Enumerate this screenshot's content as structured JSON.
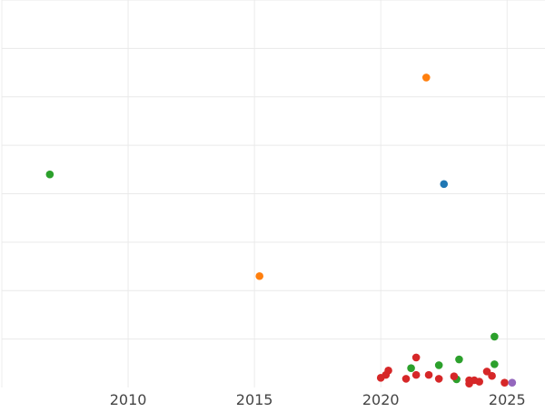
{
  "chart_data": {
    "type": "scatter",
    "x_tick_labels": [
      "2010",
      "2015",
      "2020",
      "2025"
    ],
    "x_ticks": [
      2010,
      2015,
      2020,
      2025
    ],
    "xlim": [
      2005.0,
      2026.5
    ],
    "ylim": [
      0,
      8
    ],
    "y_gridlines": [
      1,
      2,
      3,
      4,
      5,
      6,
      7,
      8
    ],
    "grid": true,
    "legend": "none",
    "colors": {
      "blue": "#1f77b4",
      "orange": "#ff7f0e",
      "green": "#2ca02c",
      "red": "#d62728",
      "purple": "#9467bd"
    },
    "series": [
      {
        "color": "#1f77b4",
        "points": [
          {
            "x": 2022.5,
            "y": 4.2
          }
        ]
      },
      {
        "color": "#ff7f0e",
        "points": [
          {
            "x": 2021.8,
            "y": 6.4
          },
          {
            "x": 2015.2,
            "y": 2.3
          }
        ]
      },
      {
        "color": "#2ca02c",
        "points": [
          {
            "x": 2006.9,
            "y": 4.4
          },
          {
            "x": 2024.5,
            "y": 1.05
          },
          {
            "x": 2023.1,
            "y": 0.58
          },
          {
            "x": 2024.5,
            "y": 0.48
          },
          {
            "x": 2022.3,
            "y": 0.46
          },
          {
            "x": 2021.2,
            "y": 0.4
          },
          {
            "x": 2023.0,
            "y": 0.17
          }
        ]
      },
      {
        "color": "#d62728",
        "points": [
          {
            "x": 2021.4,
            "y": 0.62
          },
          {
            "x": 2020.3,
            "y": 0.35
          },
          {
            "x": 2020.2,
            "y": 0.26
          },
          {
            "x": 2020.0,
            "y": 0.2
          },
          {
            "x": 2021.0,
            "y": 0.18
          },
          {
            "x": 2021.4,
            "y": 0.26
          },
          {
            "x": 2021.9,
            "y": 0.26
          },
          {
            "x": 2022.3,
            "y": 0.18
          },
          {
            "x": 2022.9,
            "y": 0.23
          },
          {
            "x": 2023.5,
            "y": 0.15
          },
          {
            "x": 2023.7,
            "y": 0.15
          },
          {
            "x": 2023.9,
            "y": 0.12
          },
          {
            "x": 2024.2,
            "y": 0.33
          },
          {
            "x": 2024.4,
            "y": 0.24
          },
          {
            "x": 2024.9,
            "y": 0.1
          },
          {
            "x": 2023.5,
            "y": 0.08
          }
        ]
      },
      {
        "color": "#9467bd",
        "points": [
          {
            "x": 2025.2,
            "y": 0.1
          }
        ]
      }
    ]
  }
}
